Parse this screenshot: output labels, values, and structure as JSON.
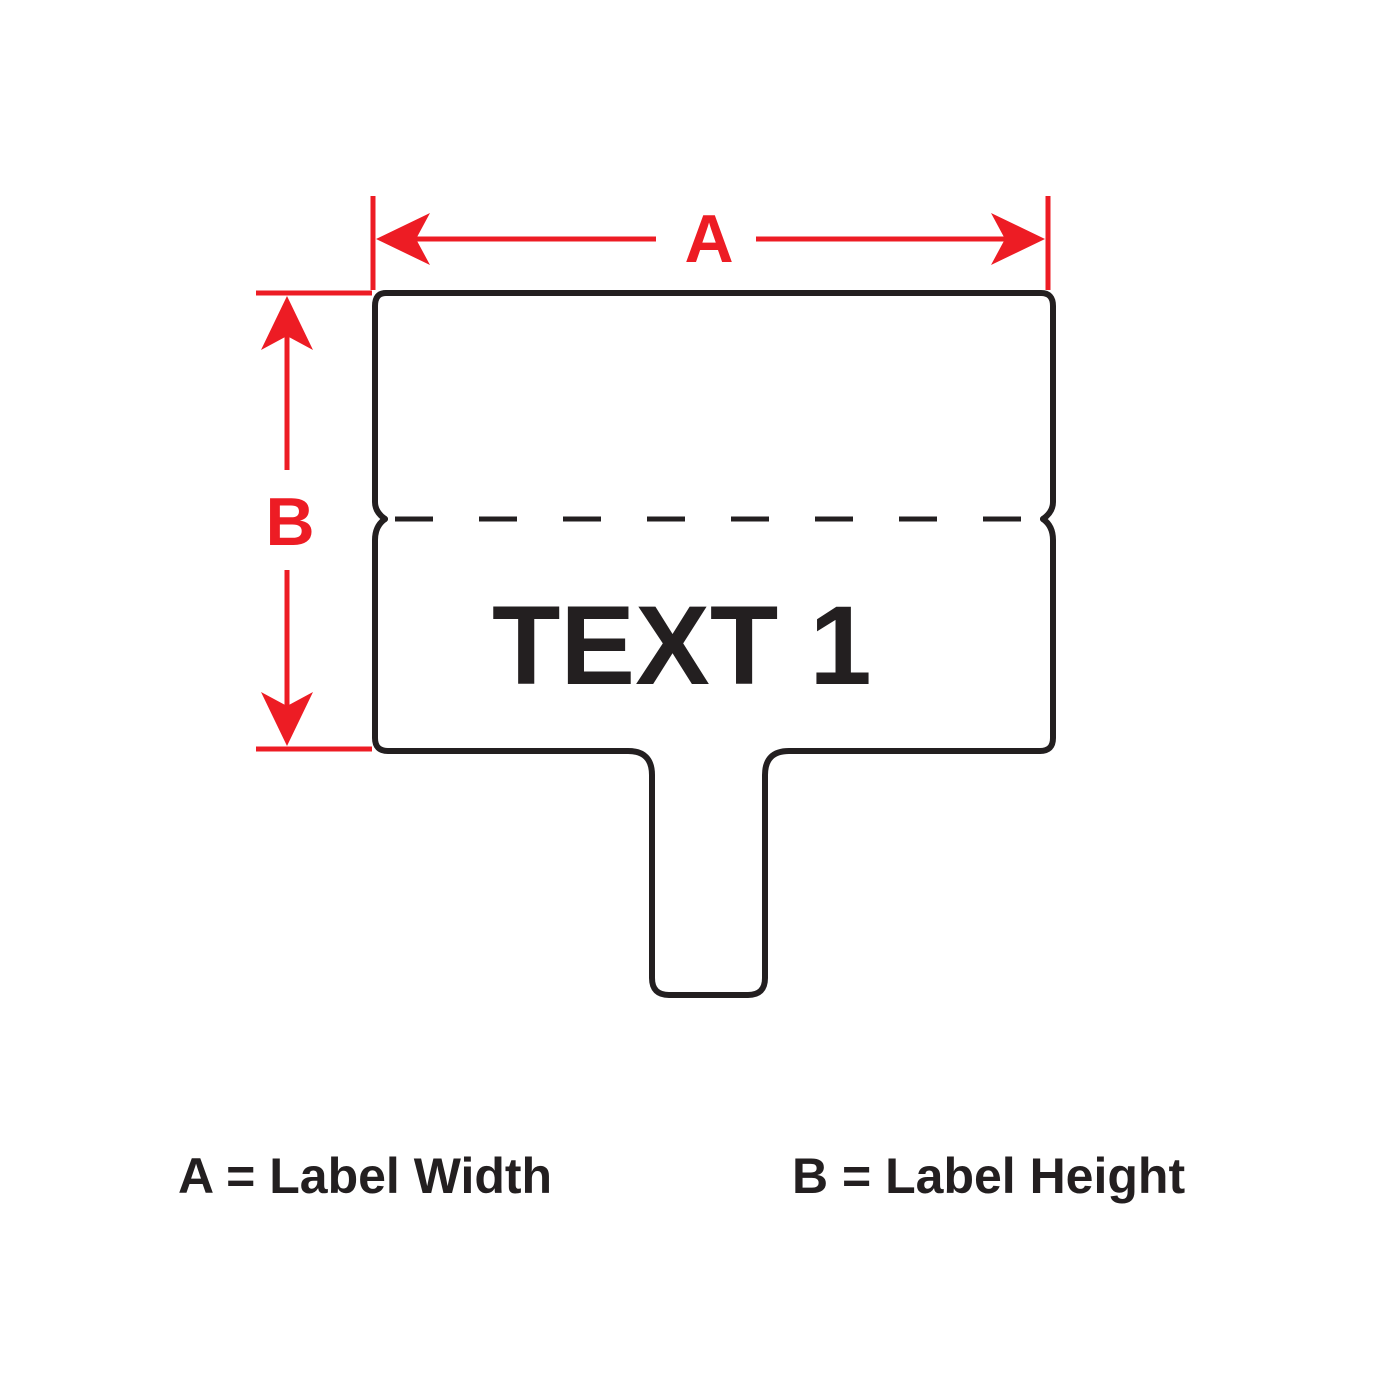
{
  "colors": {
    "dimension": "#ed1c24",
    "outline": "#231f20",
    "background": "#ffffff"
  },
  "diagram": {
    "dimension_a_letter": "A",
    "dimension_b_letter": "B",
    "label_text": "TEXT 1"
  },
  "legend": {
    "a": "A = Label Width",
    "b": "B = Label Height"
  }
}
